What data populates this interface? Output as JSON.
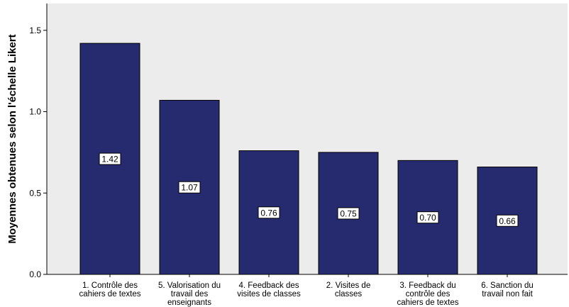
{
  "chart_data": {
    "type": "bar",
    "title": "",
    "xlabel": "",
    "ylabel": "Moyennes obtenues selon l'échelle Likert",
    "ylim": [
      0,
      1.6
    ],
    "yticks": [
      "0.0",
      "0.5",
      "1.0",
      "1.5"
    ],
    "ytick_values": [
      0,
      0.5,
      1.0,
      1.5
    ],
    "grid": false,
    "bar_color": "#262b6f",
    "categories": [
      [
        "1. Contrôle des",
        "cahiers de textes"
      ],
      [
        "5. Valorisation du",
        "travail des",
        "enseignants"
      ],
      [
        "4. Feedback des",
        "visites de classes"
      ],
      [
        "2. Visites de",
        "classes"
      ],
      [
        "3. Feedback du",
        "contrôle des",
        "cahiers de textes"
      ],
      [
        "6. Sanction du",
        "travail non fait"
      ]
    ],
    "values": [
      1.42,
      1.07,
      0.76,
      0.75,
      0.7,
      0.66
    ],
    "data_labels": [
      "1.42",
      "1.07",
      "0.76",
      "0.75",
      "0.70",
      "0.66"
    ]
  }
}
